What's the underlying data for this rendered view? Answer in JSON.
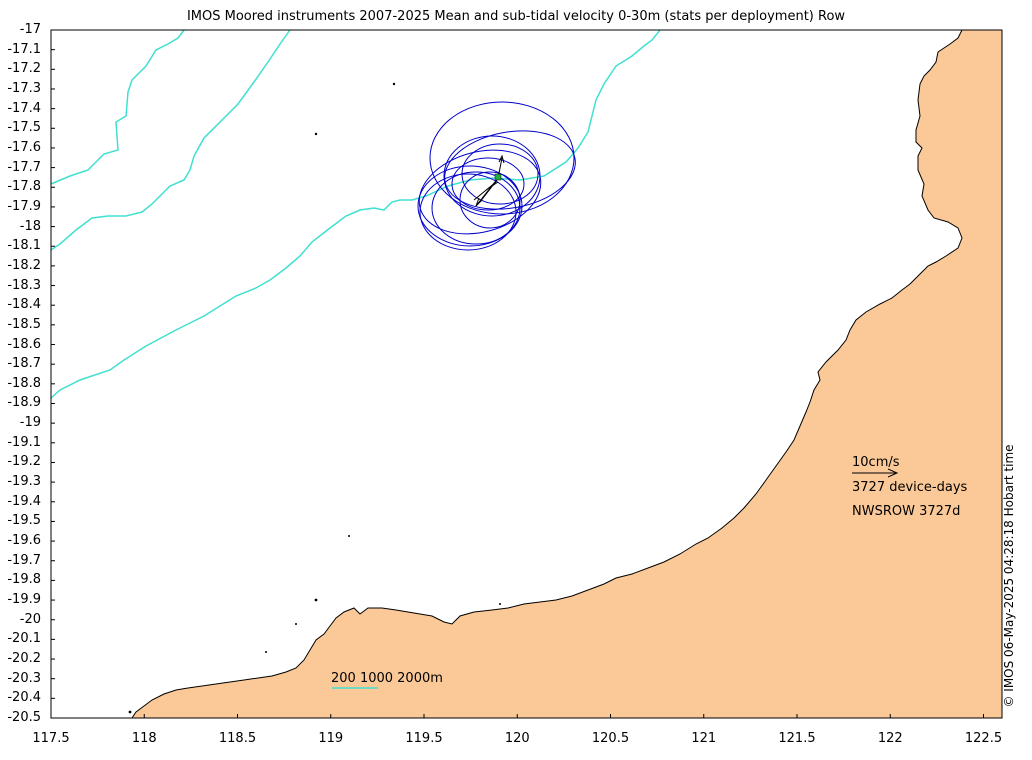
{
  "title": "IMOS Moored instruments 2007-2025 Mean and sub-tidal velocity 0-30m (stats per deployment) Row",
  "y_ticks": [
    "-17",
    "-17.1",
    "-17.2",
    "-17.3",
    "-17.4",
    "-17.5",
    "-17.6",
    "-17.7",
    "-17.8",
    "-17.9",
    "-18",
    "-18.1",
    "-18.2",
    "-18.3",
    "-18.4",
    "-18.5",
    "-18.6",
    "-18.7",
    "-18.8",
    "-18.9",
    "-19",
    "-19.1",
    "-19.2",
    "-19.3",
    "-19.4",
    "-19.5",
    "-19.6",
    "-19.7",
    "-19.8",
    "-19.9",
    "-20",
    "-20.1",
    "-20.2",
    "-20.3",
    "-20.4",
    "-20.5"
  ],
  "x_ticks": [
    "117.5",
    "118",
    "118.5",
    "119",
    "119.5",
    "120",
    "120.5",
    "121",
    "121.5",
    "122",
    "122.5"
  ],
  "legend": {
    "scale_label": "10cm/s",
    "device_days": "3727 device-days",
    "station": "NWSROW 3727d",
    "isobaths": "200 1000 2000m"
  },
  "credit": "© IMOS 06-May-2025 04:28:18 Hobart time",
  "colors": {
    "land": "#fbc997",
    "isobath": "#40e0d0",
    "ellipse": "#0000cc",
    "arrow": "#000000"
  }
}
